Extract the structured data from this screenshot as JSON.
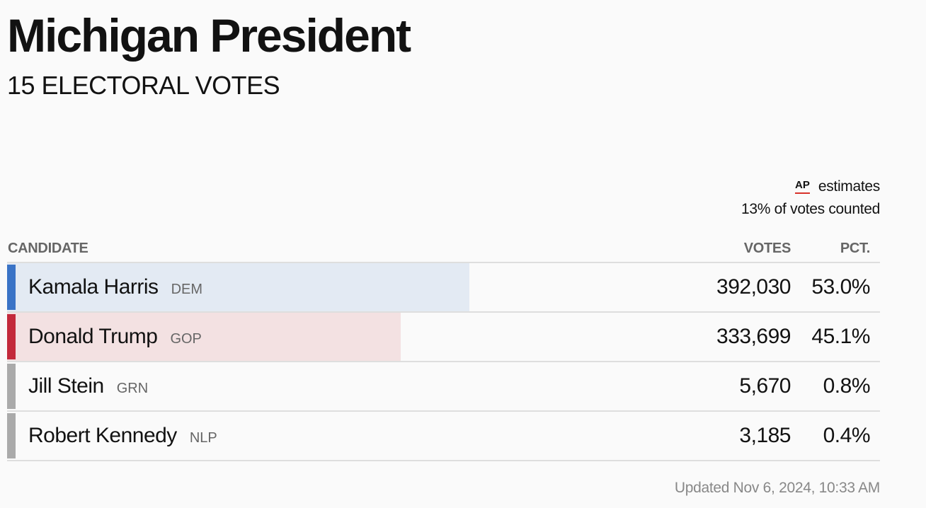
{
  "header": {
    "title": "Michigan President",
    "subtitle": "15 ELECTORAL VOTES"
  },
  "meta": {
    "source_logo": "AP",
    "source_label": "estimates",
    "counted": "13% of votes counted"
  },
  "table": {
    "columns": {
      "candidate": "CANDIDATE",
      "votes": "VOTES",
      "pct": "PCT."
    },
    "rows": [
      {
        "name": "Kamala Harris",
        "party": "DEM",
        "votes": "392,030",
        "pct": "53.0%",
        "share": 0.53,
        "bar_color": "#3a73c6",
        "fill_color": "#e3eaf3"
      },
      {
        "name": "Donald Trump",
        "party": "GOP",
        "votes": "333,699",
        "pct": "45.1%",
        "share": 0.451,
        "bar_color": "#c3293b",
        "fill_color": "#f3e1e2"
      },
      {
        "name": "Jill Stein",
        "party": "GRN",
        "votes": "5,670",
        "pct": "0.8%",
        "share": 0.008,
        "bar_color": "#aaaaaa",
        "fill_color": "transparent"
      },
      {
        "name": "Robert Kennedy",
        "party": "NLP",
        "votes": "3,185",
        "pct": "0.4%",
        "share": 0.004,
        "bar_color": "#aaaaaa",
        "fill_color": "transparent"
      }
    ]
  },
  "footer": {
    "updated": "Updated Nov 6, 2024, 10:33 AM"
  }
}
